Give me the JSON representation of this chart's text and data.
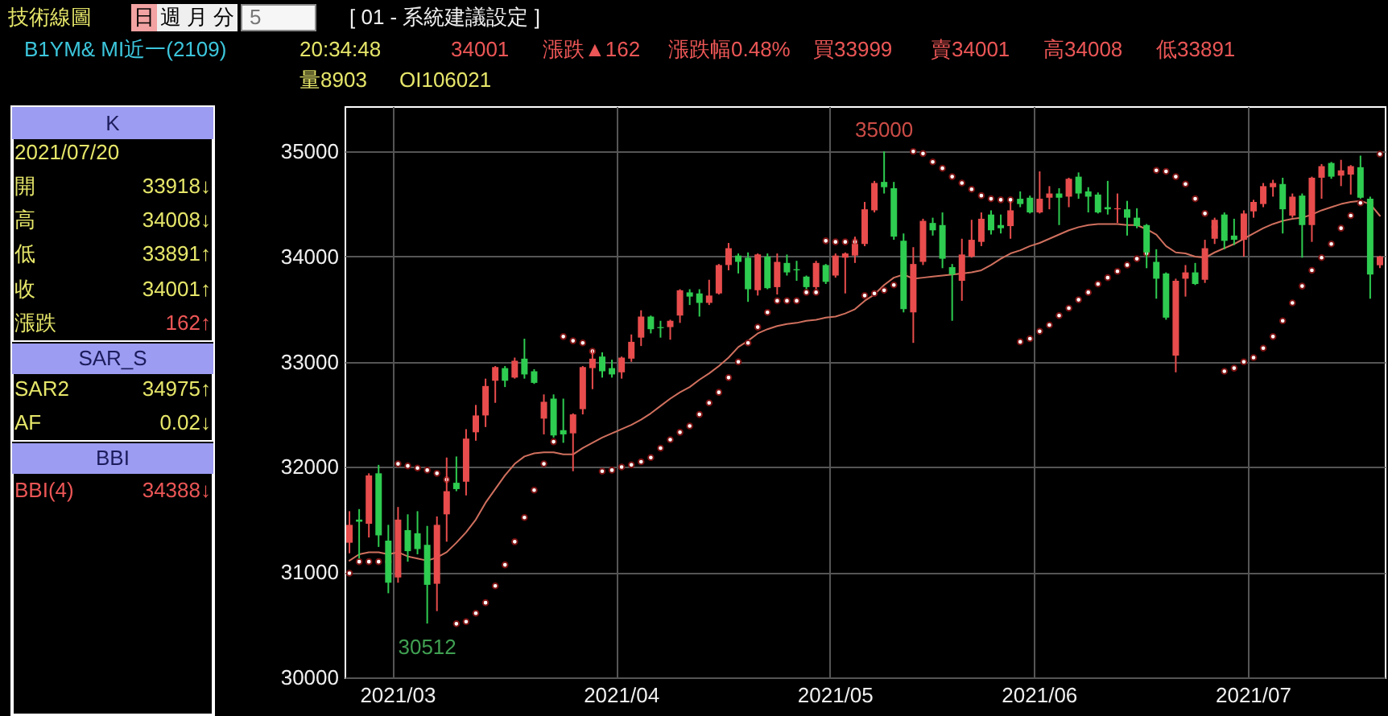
{
  "chart_data": [
    {
      "type": "other",
      "title": "技術線圖",
      "annotations": [
        "日",
        "週",
        "月",
        "分",
        "5",
        "[ 01 - 系統建議設定 ]",
        "B1YM& MI近一(2109)",
        "20:34:48",
        "34001",
        "漲跌▲162",
        "漲跌幅0.48%",
        "買33999",
        "賣34001",
        "高34008",
        "低33891",
        "量8903",
        "OI106021"
      ]
    },
    {
      "type": "other",
      "annotations": [
        "K",
        "2021/07/20",
        "開",
        "33918↓",
        "高",
        "34008↓",
        "低",
        "33891↑",
        "收",
        "34001↑",
        "漲跌",
        "162↑",
        "SAR_S",
        "SAR2",
        "34975↑",
        "AF",
        "0.02↓",
        "BBI",
        "BBI(4)",
        "34388↓"
      ]
    },
    {
      "type": "candlestick",
      "categories": [
        null,
        null,
        null,
        null,
        null,
        "2021/03",
        null,
        null,
        null,
        null,
        null,
        null,
        null,
        null,
        null,
        null,
        null,
        null,
        null,
        null,
        null,
        null,
        null,
        null,
        null,
        null,
        null,
        null,
        "2021/04",
        null,
        null,
        null,
        null,
        null,
        null,
        null,
        null,
        null,
        null,
        null,
        null,
        null,
        null,
        null,
        null,
        null,
        null,
        null,
        null,
        null,
        "2021/05",
        null,
        null,
        null,
        null,
        null,
        null,
        null,
        null,
        null,
        null,
        null,
        null,
        null,
        null,
        null,
        null,
        null,
        null,
        null,
        null,
        "2021/06",
        null,
        null,
        null,
        null,
        null,
        null,
        null,
        null,
        null,
        null,
        null,
        null,
        null,
        null,
        null,
        null,
        null,
        null,
        null,
        null,
        null,
        "2021/07",
        null,
        null,
        null,
        null,
        null,
        null,
        null,
        null,
        null,
        null,
        null,
        null,
        null
      ],
      "ohlc": [
        [
          31280,
          31580,
          31180,
          31450
        ],
        [
          31500,
          31600,
          31130,
          31480
        ],
        [
          31460,
          31940,
          31330,
          31920
        ],
        [
          31940,
          32020,
          31240,
          31350
        ],
        [
          31300,
          31450,
          30800,
          30900
        ],
        [
          30950,
          31620,
          30900,
          31500
        ],
        [
          31400,
          31550,
          31100,
          31200
        ],
        [
          31370,
          31580,
          31170,
          31220
        ],
        [
          31260,
          31440,
          30512,
          30880
        ],
        [
          30890,
          31530,
          30630,
          31450
        ],
        [
          31550,
          32090,
          31290,
          31770
        ],
        [
          31850,
          32100,
          31770,
          31790
        ],
        [
          31860,
          32360,
          31730,
          32270
        ],
        [
          32330,
          32590,
          32250,
          32490
        ],
        [
          32490,
          32840,
          32380,
          32770
        ],
        [
          32820,
          32960,
          32610,
          32950
        ],
        [
          32940,
          32960,
          32760,
          32820
        ],
        [
          32850,
          33040,
          32840,
          33010
        ],
        [
          33030,
          33220,
          32840,
          32880
        ],
        [
          32910,
          32930,
          32790,
          32800
        ],
        [
          32460,
          32690,
          32310,
          32620
        ],
        [
          32650,
          32690,
          32280,
          32300
        ],
        [
          32350,
          32650,
          32230,
          32310
        ],
        [
          32320,
          32510,
          31960,
          32500
        ],
        [
          32550,
          32960,
          32500,
          32950
        ],
        [
          32940,
          33110,
          32740,
          33030
        ],
        [
          33050,
          33090,
          32850,
          32910
        ],
        [
          32940,
          33020,
          32850,
          32880
        ],
        [
          32900,
          33050,
          32840,
          33040
        ],
        [
          33030,
          33260,
          33000,
          33190
        ],
        [
          33230,
          33490,
          33150,
          33430
        ],
        [
          33430,
          33440,
          33270,
          33310
        ],
        [
          33330,
          33390,
          33230,
          33320
        ],
        [
          33330,
          33400,
          33210,
          33390
        ],
        [
          33440,
          33690,
          33370,
          33680
        ],
        [
          33660,
          33690,
          33540,
          33620
        ],
        [
          33650,
          33690,
          33430,
          33560
        ],
        [
          33560,
          33780,
          33540,
          33630
        ],
        [
          33650,
          33930,
          33640,
          33920
        ],
        [
          33920,
          34130,
          33870,
          34080
        ],
        [
          34010,
          34030,
          33840,
          33950
        ],
        [
          33990,
          34040,
          33570,
          33690
        ],
        [
          33680,
          34030,
          33630,
          34020
        ],
        [
          34000,
          34030,
          33690,
          33700
        ],
        [
          33710,
          34030,
          33640,
          33950
        ],
        [
          33940,
          34020,
          33820,
          33850
        ],
        [
          33880,
          33960,
          33770,
          33870
        ],
        [
          33810,
          33820,
          33690,
          33710
        ],
        [
          33710,
          33960,
          33690,
          33940
        ],
        [
          33920,
          33930,
          33740,
          33760
        ],
        [
          33820,
          34030,
          33800,
          34010
        ],
        [
          33990,
          34040,
          33650,
          34030
        ],
        [
          34010,
          34190,
          33940,
          34120
        ],
        [
          34120,
          34520,
          34100,
          34450
        ],
        [
          34440,
          34720,
          34420,
          34700
        ],
        [
          34710,
          35000,
          34600,
          34660
        ],
        [
          34650,
          34710,
          34160,
          34190
        ],
        [
          34150,
          34220,
          33470,
          33500
        ],
        [
          33470,
          34090,
          33180,
          33930
        ],
        [
          33950,
          34360,
          33920,
          34340
        ],
        [
          34320,
          34370,
          34200,
          34250
        ],
        [
          34300,
          34420,
          33890,
          33980
        ],
        [
          33900,
          33930,
          33390,
          33830
        ],
        [
          33770,
          34170,
          33580,
          34020
        ],
        [
          34000,
          34350,
          33990,
          34160
        ],
        [
          34140,
          34420,
          34100,
          34360
        ],
        [
          34400,
          34440,
          34210,
          34250
        ],
        [
          34300,
          34400,
          34220,
          34270
        ],
        [
          34290,
          34520,
          34170,
          34440
        ],
        [
          34550,
          34620,
          34470,
          34500
        ],
        [
          34560,
          34580,
          34410,
          34420
        ],
        [
          34420,
          34810,
          34410,
          34550
        ],
        [
          34560,
          34670,
          34450,
          34600
        ],
        [
          34600,
          34650,
          34300,
          34560
        ],
        [
          34570,
          34750,
          34470,
          34740
        ],
        [
          34760,
          34800,
          34550,
          34600
        ],
        [
          34620,
          34660,
          34420,
          34570
        ],
        [
          34590,
          34610,
          34410,
          34420
        ],
        [
          34470,
          34720,
          34400,
          34450
        ],
        [
          34450,
          34600,
          34320,
          34460
        ],
        [
          34450,
          34530,
          34200,
          34370
        ],
        [
          34370,
          34460,
          34270,
          34290
        ],
        [
          34300,
          34310,
          33890,
          34040
        ],
        [
          33950,
          34070,
          33600,
          33790
        ],
        [
          33840,
          33850,
          33400,
          33420
        ],
        [
          33060,
          33790,
          32900,
          33770
        ],
        [
          33790,
          33920,
          33620,
          33850
        ],
        [
          33850,
          33940,
          33730,
          33740
        ],
        [
          33780,
          34160,
          33750,
          34080
        ],
        [
          34170,
          34370,
          34120,
          34350
        ],
        [
          34400,
          34420,
          34070,
          34150
        ],
        [
          34200,
          34360,
          34110,
          34160
        ],
        [
          34160,
          34440,
          34000,
          34410
        ],
        [
          34430,
          34540,
          34370,
          34520
        ],
        [
          34500,
          34700,
          34470,
          34670
        ],
        [
          34660,
          34730,
          34570,
          34700
        ],
        [
          34690,
          34750,
          34220,
          34450
        ],
        [
          34390,
          34600,
          34370,
          34570
        ],
        [
          34580,
          34600,
          33990,
          34300
        ],
        [
          34300,
          34760,
          34140,
          34750
        ],
        [
          34750,
          34880,
          34550,
          34860
        ],
        [
          34890,
          34900,
          34740,
          34760
        ],
        [
          34770,
          34920,
          34670,
          34820
        ],
        [
          34780,
          34870,
          34590,
          34860
        ],
        [
          34850,
          34960,
          34550,
          34560
        ],
        [
          34550,
          34570,
          33600,
          33830
        ],
        [
          33918,
          34008,
          33891,
          34001
        ]
      ],
      "colors": [
        "#e84c4c",
        "#2ecc50",
        "#e84c4c",
        "#2ecc50",
        "#2ecc50",
        "#e84c4c",
        "#2ecc50",
        "#2ecc50",
        "#2ecc50",
        "#e84c4c",
        "#e84c4c",
        "#2ecc50",
        "#e84c4c",
        "#e84c4c",
        "#e84c4c",
        "#e84c4c",
        "#2ecc50",
        "#e84c4c",
        "#2ecc50",
        "#2ecc50",
        "#e84c4c",
        "#2ecc50",
        "#2ecc50",
        "#e84c4c",
        "#e84c4c",
        "#e84c4c",
        "#2ecc50",
        "#2ecc50",
        "#e84c4c",
        "#e84c4c",
        "#e84c4c",
        "#2ecc50",
        "#2ecc50",
        "#e84c4c",
        "#e84c4c",
        "#2ecc50",
        "#2ecc50",
        "#e84c4c",
        "#e84c4c",
        "#e84c4c",
        "#2ecc50",
        "#2ecc50",
        "#e84c4c",
        "#2ecc50",
        "#e84c4c",
        "#2ecc50",
        "#2ecc50",
        "#2ecc50",
        "#e84c4c",
        "#2ecc50",
        "#e84c4c",
        "#e84c4c",
        "#e84c4c",
        "#e84c4c",
        "#e84c4c",
        "#2ecc50",
        "#2ecc50",
        "#2ecc50",
        "#e84c4c",
        "#e84c4c",
        "#2ecc50",
        "#2ecc50",
        "#2ecc50",
        "#e84c4c",
        "#e84c4c",
        "#e84c4c",
        "#2ecc50",
        "#2ecc50",
        "#e84c4c",
        "#2ecc50",
        "#2ecc50",
        "#e84c4c",
        "#e84c4c",
        "#2ecc50",
        "#e84c4c",
        "#2ecc50",
        "#2ecc50",
        "#2ecc50",
        "#2ecc50",
        "#e84c4c",
        "#2ecc50",
        "#2ecc50",
        "#2ecc50",
        "#2ecc50",
        "#2ecc50",
        "#e84c4c",
        "#e84c4c",
        "#2ecc50",
        "#e84c4c",
        "#e84c4c",
        "#2ecc50",
        "#2ecc50",
        "#e84c4c",
        "#e84c4c",
        "#e84c4c",
        "#e84c4c",
        "#2ecc50",
        "#e84c4c",
        "#2ecc50",
        "#e84c4c",
        "#e84c4c",
        "#2ecc50",
        "#e84c4c",
        "#e84c4c",
        "#2ecc50",
        "#2ecc50",
        "#e84c4c"
      ],
      "series": [
        {
          "type": "line",
          "color": "#d0705e",
          "values": [
            31110,
            31170,
            31190,
            31190,
            31170,
            31190,
            31150,
            31130,
            31110,
            31140,
            31190,
            31280,
            31380,
            31500,
            31660,
            31790,
            31920,
            32030,
            32100,
            32130,
            32140,
            32140,
            32120,
            32120,
            32180,
            32230,
            32280,
            32320,
            32360,
            32400,
            32450,
            32510,
            32580,
            32650,
            32710,
            32760,
            32830,
            32890,
            32960,
            33040,
            33140,
            33200,
            33270,
            33310,
            33340,
            33360,
            33370,
            33390,
            33400,
            33420,
            33430,
            33460,
            33500,
            33580,
            33640,
            33730,
            33800,
            33830,
            33790,
            33800,
            33810,
            33820,
            33830,
            33840,
            33850,
            33870,
            33920,
            33980,
            34030,
            34060,
            34100,
            34130,
            34170,
            34210,
            34250,
            34280,
            34300,
            34310,
            34310,
            34310,
            34300,
            34300,
            34260,
            34210,
            34100,
            34040,
            34030,
            34000,
            33990,
            34040,
            34080,
            34120,
            34170,
            34220,
            34270,
            34310,
            34340,
            34360,
            34370,
            34400,
            34440,
            34470,
            34500,
            34520,
            34530,
            34500,
            34388
          ]
        },
        {
          "type": "scatter",
          "color": "#ffffff",
          "marker": "circle",
          "values": [
            30990,
            31100,
            31100,
            31100,
            31100,
            32030,
            32010,
            31990,
            31970,
            31940,
            31880,
            30510,
            30530,
            30610,
            30710,
            30870,
            31070,
            31290,
            31520,
            31780,
            32030,
            32240,
            33240,
            33200,
            33180,
            33100,
            31960,
            31970,
            32000,
            32020,
            32050,
            32090,
            32180,
            32260,
            32330,
            32390,
            32500,
            32610,
            32710,
            32850,
            33000,
            33180,
            33330,
            33470,
            33580,
            33580,
            33580,
            33660,
            33660,
            34150,
            34140,
            34140,
            34140,
            33630,
            33650,
            33680,
            33730,
            33840,
            35000,
            34980,
            34900,
            34840,
            34760,
            34700,
            34640,
            34580,
            34550,
            34540,
            34540,
            33190,
            33220,
            33290,
            33350,
            33440,
            33510,
            33590,
            33660,
            33740,
            33800,
            33860,
            33920,
            33980,
            34030,
            34820,
            34810,
            34760,
            34690,
            34550,
            34410,
            34280,
            32910,
            32940,
            33000,
            33040,
            33130,
            33240,
            33390,
            33560,
            33720,
            33870,
            33990,
            34120,
            34270,
            34390,
            34510,
            34510,
            34975
          ]
        }
      ],
      "ylim": [
        30000,
        35430
      ],
      "yticks": [
        30000,
        31000,
        32000,
        33000,
        34000,
        35000
      ],
      "grid": true,
      "annotations": [
        {
          "text": "35000",
          "y": 35000
        },
        {
          "text": "30512",
          "y": 30512
        }
      ]
    }
  ]
}
